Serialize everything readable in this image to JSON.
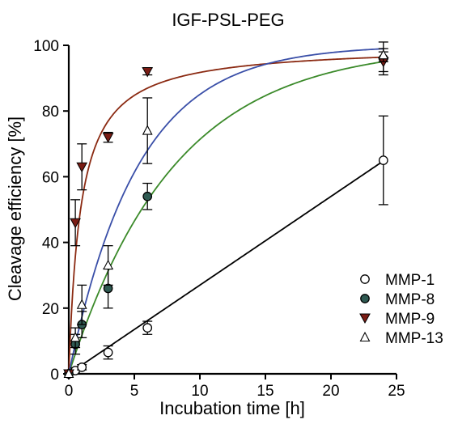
{
  "chart_data": {
    "type": "scatter",
    "title": "IGF-PSL-PEG",
    "xlabel": "Incubation time [h]",
    "ylabel": "Cleavage efficiency [%]",
    "xlim": [
      0,
      25
    ],
    "ylim": [
      0,
      100
    ],
    "xticks": [
      0,
      5,
      10,
      15,
      20,
      25
    ],
    "yticks": [
      0,
      20,
      40,
      60,
      80,
      100
    ],
    "legend_position": "bottom-right",
    "grid": false,
    "series": [
      {
        "name": "MMP-1",
        "marker": "open-circle",
        "marker_color": "#ffffff",
        "line_color": "#000000",
        "x": [
          0,
          0.5,
          1,
          3,
          6,
          24
        ],
        "y": [
          0,
          1,
          2,
          6.5,
          14,
          65
        ],
        "err": [
          0.5,
          0.8,
          0.8,
          2,
          2,
          13.5
        ],
        "fit": {
          "model": "linear",
          "slope": 2.7
        }
      },
      {
        "name": "MMP-8",
        "marker": "filled-circle",
        "marker_color": "#2f5a52",
        "line_color": "#3b8a2a",
        "x": [
          0,
          0.5,
          1,
          3,
          6,
          24
        ],
        "y": [
          0,
          9,
          15,
          26,
          54,
          96
        ],
        "err": [
          0.5,
          3,
          4,
          6,
          4,
          5
        ],
        "fit": {
          "model": "exponential",
          "plateau": 100,
          "k": 0.125
        }
      },
      {
        "name": "MMP-9",
        "marker": "filled-triangle-down",
        "marker_color": "#7a1c14",
        "line_color": "#8b2a12",
        "x": [
          0,
          0.5,
          1,
          3,
          6,
          24
        ],
        "y": [
          0,
          46,
          63,
          72,
          92,
          95
        ],
        "err": [
          0.5,
          7,
          7,
          1.5,
          1,
          3
        ],
        "fit": {
          "model": "hyperbolic",
          "plateau": 100,
          "half": 0.9
        }
      },
      {
        "name": "MMP-13",
        "marker": "open-triangle-up",
        "marker_color": "#ffffff",
        "line_color": "#3a4fa8",
        "x": [
          0,
          0.5,
          1,
          3,
          6,
          24
        ],
        "y": [
          0,
          11,
          21,
          33,
          74,
          97
        ],
        "err": [
          0.5,
          3,
          6,
          6,
          10,
          2
        ],
        "fit": {
          "model": "exponential",
          "plateau": 100,
          "k": 0.19
        }
      }
    ]
  }
}
